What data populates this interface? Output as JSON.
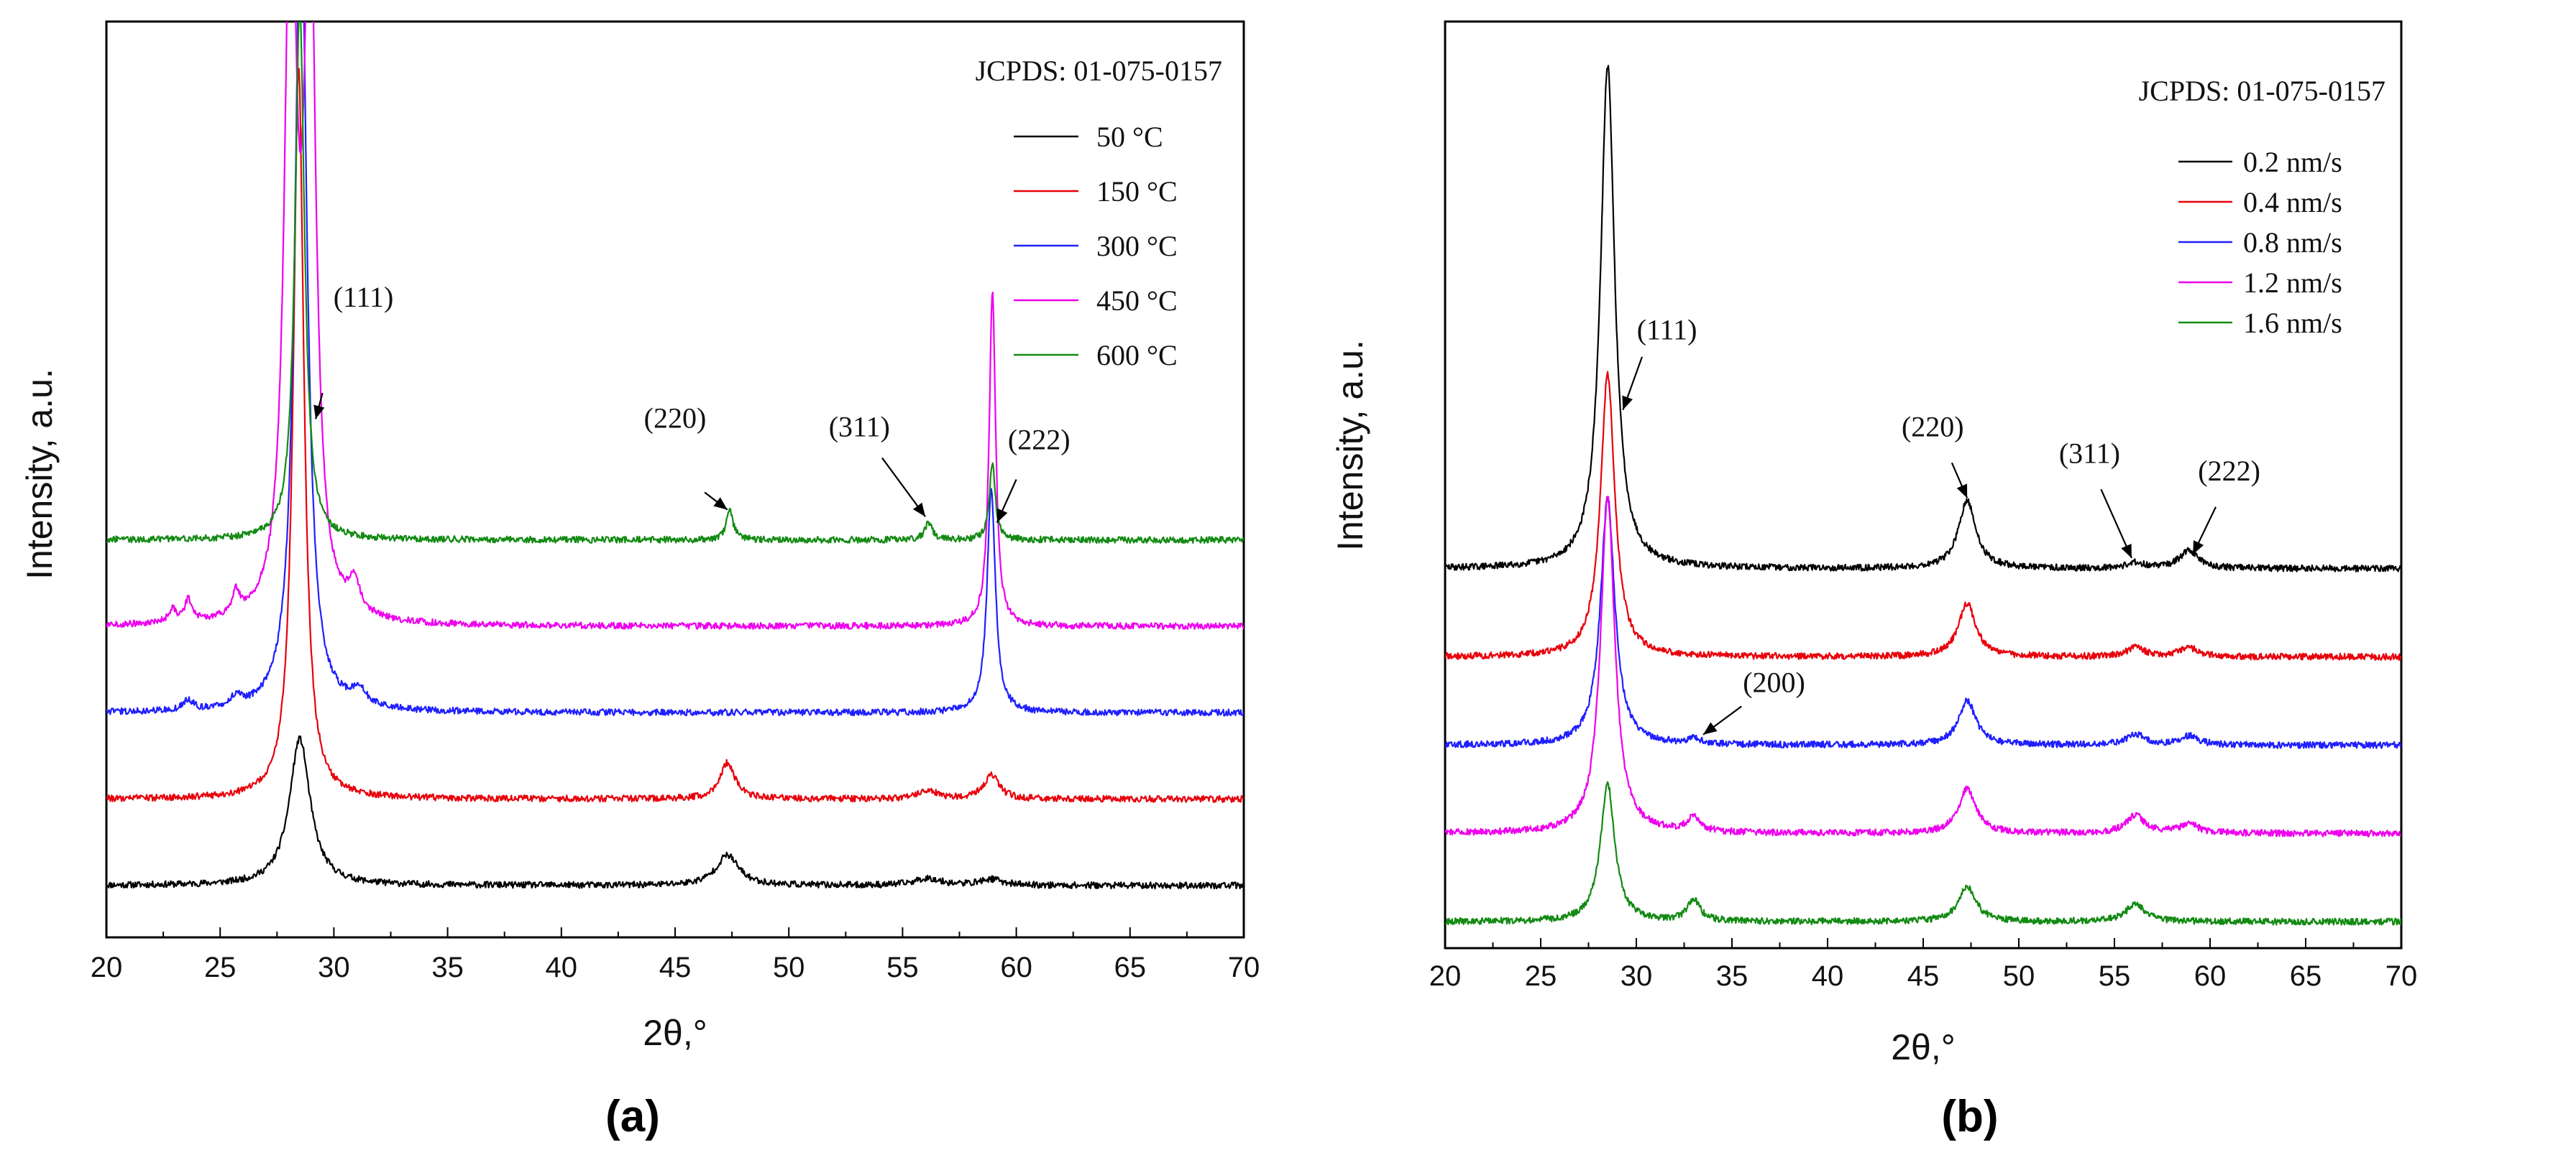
{
  "chart_data": [
    {
      "type": "line",
      "panel_label": "(a)",
      "xlabel": "2θ,°",
      "ylabel": "Intensity, a.u.",
      "xlim": [
        20,
        70
      ],
      "ylim": [
        -0.6,
        10
      ],
      "x_ticks": [
        "20",
        "25",
        "30",
        "35",
        "40",
        "45",
        "50",
        "55",
        "60",
        "65",
        "70"
      ],
      "reference": "JCPDS: 01-075-0157",
      "legend_position": "top-right",
      "series": [
        {
          "name": "50 °C",
          "color": "#000000",
          "baseline": 0.0,
          "peaks": [
            {
              "x": 28.5,
              "h": 1.7,
              "w": 0.55
            },
            {
              "x": 47.3,
              "h": 0.35,
              "w": 0.6
            },
            {
              "x": 56.1,
              "h": 0.08,
              "w": 0.7
            },
            {
              "x": 58.9,
              "h": 0.07,
              "w": 0.6
            }
          ]
        },
        {
          "name": "150 °C",
          "color": "#e8000b",
          "baseline": 1.0,
          "peaks": [
            {
              "x": 28.45,
              "h": 8.5,
              "w": 0.28
            },
            {
              "x": 47.3,
              "h": 0.42,
              "w": 0.4
            },
            {
              "x": 56.1,
              "h": 0.1,
              "w": 0.5
            },
            {
              "x": 58.9,
              "h": 0.28,
              "w": 0.4
            }
          ]
        },
        {
          "name": "300 °C",
          "color": "#1f1fff",
          "baseline": 2.0,
          "peaks": [
            {
              "x": 28.55,
              "h": 9.5,
              "w": 0.32
            },
            {
              "x": 23.6,
              "h": 0.12,
              "w": 0.25
            },
            {
              "x": 25.7,
              "h": 0.12,
              "w": 0.25
            },
            {
              "x": 31.1,
              "h": 0.18,
              "w": 0.4
            },
            {
              "x": 58.9,
              "h": 2.6,
              "w": 0.22
            }
          ]
        },
        {
          "name": "450 °C",
          "color": "#ee00ee",
          "baseline": 3.0,
          "peaks": [
            {
              "x": 28.1,
              "h": 8.5,
              "w": 0.3
            },
            {
              "x": 28.95,
              "h": 8.0,
              "w": 0.3
            },
            {
              "x": 22.9,
              "h": 0.15,
              "w": 0.2
            },
            {
              "x": 23.6,
              "h": 0.25,
              "w": 0.2
            },
            {
              "x": 25.7,
              "h": 0.25,
              "w": 0.2
            },
            {
              "x": 30.9,
              "h": 0.35,
              "w": 0.3
            },
            {
              "x": 58.95,
              "h": 3.9,
              "w": 0.17
            }
          ]
        },
        {
          "name": "600 °C",
          "color": "#138a13",
          "baseline": 4.0,
          "peaks": [
            {
              "x": 28.5,
              "h": 6.2,
              "w": 0.25
            },
            {
              "x": 47.4,
              "h": 0.35,
              "w": 0.18
            },
            {
              "x": 56.15,
              "h": 0.2,
              "w": 0.2
            },
            {
              "x": 58.95,
              "h": 0.9,
              "w": 0.15
            }
          ]
        }
      ],
      "annotations": [
        {
          "text": "(111)",
          "x": 31.3,
          "y": 6.7,
          "ax": 29.5,
          "ay": 5.7,
          "tx": 29.2,
          "ty": 5.4
        },
        {
          "text": "(220)",
          "x": 45.0,
          "y": 5.3,
          "ax": 46.3,
          "ay": 4.55,
          "tx": 47.3,
          "ty": 4.35
        },
        {
          "text": "(311)",
          "x": 53.1,
          "y": 5.2,
          "ax": 54.1,
          "ay": 4.95,
          "tx": 56.0,
          "ty": 4.27
        },
        {
          "text": "(222)",
          "x": 61.0,
          "y": 5.05,
          "ax": 60.0,
          "ay": 4.7,
          "tx": 59.15,
          "ty": 4.2
        }
      ]
    },
    {
      "type": "line",
      "panel_label": "(b)",
      "xlabel": "2θ,°",
      "ylabel": "Intensity, a.u.",
      "xlim": [
        20,
        70
      ],
      "ylim": [
        -0.15,
        5.1
      ],
      "x_ticks": [
        "20",
        "25",
        "30",
        "35",
        "40",
        "45",
        "50",
        "55",
        "60",
        "65",
        "70"
      ],
      "reference": "JCPDS: 01-075-0157",
      "legend_position": "top-right",
      "series": [
        {
          "name": "0.2 nm/s",
          "color": "#000000",
          "baseline": 2.0,
          "peaks": [
            {
              "x": 28.5,
              "h": 2.85,
              "w": 0.45
            },
            {
              "x": 47.3,
              "h": 0.38,
              "w": 0.55
            },
            {
              "x": 56.1,
              "h": 0.03,
              "w": 0.6
            },
            {
              "x": 58.9,
              "h": 0.1,
              "w": 0.6
            }
          ]
        },
        {
          "name": "0.4 nm/s",
          "color": "#e8000b",
          "baseline": 1.5,
          "peaks": [
            {
              "x": 28.5,
              "h": 1.6,
              "w": 0.45
            },
            {
              "x": 47.3,
              "h": 0.3,
              "w": 0.55
            },
            {
              "x": 56.1,
              "h": 0.05,
              "w": 0.6
            },
            {
              "x": 58.9,
              "h": 0.05,
              "w": 0.6
            }
          ]
        },
        {
          "name": "0.8 nm/s",
          "color": "#1f1fff",
          "baseline": 1.0,
          "peaks": [
            {
              "x": 28.5,
              "h": 1.4,
              "w": 0.45
            },
            {
              "x": 33.0,
              "h": 0.03,
              "w": 0.4
            },
            {
              "x": 47.3,
              "h": 0.25,
              "w": 0.55
            },
            {
              "x": 56.1,
              "h": 0.06,
              "w": 0.6
            },
            {
              "x": 58.9,
              "h": 0.05,
              "w": 0.6
            }
          ]
        },
        {
          "name": "1.2 nm/s",
          "color": "#ee00ee",
          "baseline": 0.5,
          "peaks": [
            {
              "x": 28.5,
              "h": 1.9,
              "w": 0.45
            },
            {
              "x": 33.0,
              "h": 0.08,
              "w": 0.4
            },
            {
              "x": 47.3,
              "h": 0.25,
              "w": 0.55
            },
            {
              "x": 56.1,
              "h": 0.1,
              "w": 0.6
            },
            {
              "x": 58.9,
              "h": 0.05,
              "w": 0.6
            }
          ]
        },
        {
          "name": "1.6 nm/s",
          "color": "#138a13",
          "baseline": 0.0,
          "peaks": [
            {
              "x": 28.5,
              "h": 0.78,
              "w": 0.45
            },
            {
              "x": 33.0,
              "h": 0.12,
              "w": 0.4
            },
            {
              "x": 47.3,
              "h": 0.2,
              "w": 0.55
            },
            {
              "x": 56.1,
              "h": 0.1,
              "w": 0.6
            }
          ]
        }
      ],
      "annotations": [
        {
          "text": "(111)",
          "x": 31.6,
          "y": 3.3,
          "ax": 30.3,
          "ay": 3.2,
          "tx": 29.3,
          "ty": 2.9
        },
        {
          "text": "(220)",
          "x": 45.5,
          "y": 2.75,
          "ax": 46.5,
          "ay": 2.6,
          "tx": 47.3,
          "ty": 2.4
        },
        {
          "text": "(311)",
          "x": 53.7,
          "y": 2.6,
          "ax": 54.3,
          "ay": 2.45,
          "tx": 55.9,
          "ty": 2.06
        },
        {
          "text": "(222)",
          "x": 61.0,
          "y": 2.5,
          "ax": 60.3,
          "ay": 2.35,
          "tx": 59.1,
          "ty": 2.08
        },
        {
          "text": "(200)",
          "x": 37.2,
          "y": 1.3,
          "ax": 35.5,
          "ay": 1.22,
          "tx": 33.5,
          "ty": 1.06
        }
      ]
    }
  ]
}
